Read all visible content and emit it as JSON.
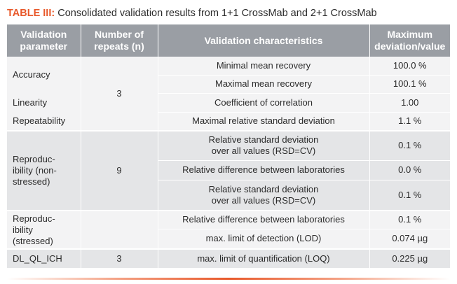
{
  "caption": {
    "label": "TABLE III:",
    "text": "Consolidated validation results from 1+1 CrossMab and 2+1 CrossMab"
  },
  "table": {
    "headers": [
      [
        "Validation",
        "parameter"
      ],
      [
        "Number of",
        "repeats (n)"
      ],
      [
        "Validation characteristics"
      ],
      [
        "Maximum",
        "deviation/value"
      ]
    ],
    "group1": {
      "params": [
        "Accuracy",
        "Linearity",
        "Repeatability"
      ],
      "repeats": "3",
      "rows": [
        {
          "characteristic": [
            "Minimal mean recovery"
          ],
          "value": "100.0 %"
        },
        {
          "characteristic": [
            "Maximal mean recovery"
          ],
          "value": "100.1 %"
        },
        {
          "characteristic": [
            "Coefficient of correlation"
          ],
          "value": "1.00"
        },
        {
          "characteristic": [
            "Maximal relative standard deviation"
          ],
          "value": "1.1 %"
        }
      ]
    },
    "group2": {
      "param": [
        "Reproduc-",
        "ibility (non-",
        "stressed)"
      ],
      "repeats": "9",
      "rows": [
        {
          "characteristic": [
            "Relative standard deviation",
            "over all values (RSD=CV)"
          ],
          "value": "0.1 %"
        },
        {
          "characteristic": [
            "Relative difference between laboratories"
          ],
          "value": "0.0 %"
        },
        {
          "characteristic": [
            "Relative standard deviation",
            "over all values (RSD=CV)"
          ],
          "value": "0.1 %"
        }
      ]
    },
    "group3": {
      "param": [
        "Reproduc-",
        "ibility",
        "(stressed)"
      ],
      "repeats": "",
      "rows": [
        {
          "characteristic": [
            "Relative difference between laboratories"
          ],
          "value": "0.1 %"
        },
        {
          "characteristic": [
            "max. limit of detection (LOD)"
          ],
          "value": "0.074 µg"
        }
      ]
    },
    "group4": {
      "param": "DL_QL_ICH",
      "repeats": "3",
      "rows": [
        {
          "characteristic": [
            "max. limit of quantification (LOQ)"
          ],
          "value": "0.225 µg"
        }
      ]
    }
  },
  "colors": {
    "accent": "#e8592b",
    "header_bg": "#9a9ea4",
    "row_light": "#f3f3f4",
    "row_dark": "#e4e5e7"
  }
}
